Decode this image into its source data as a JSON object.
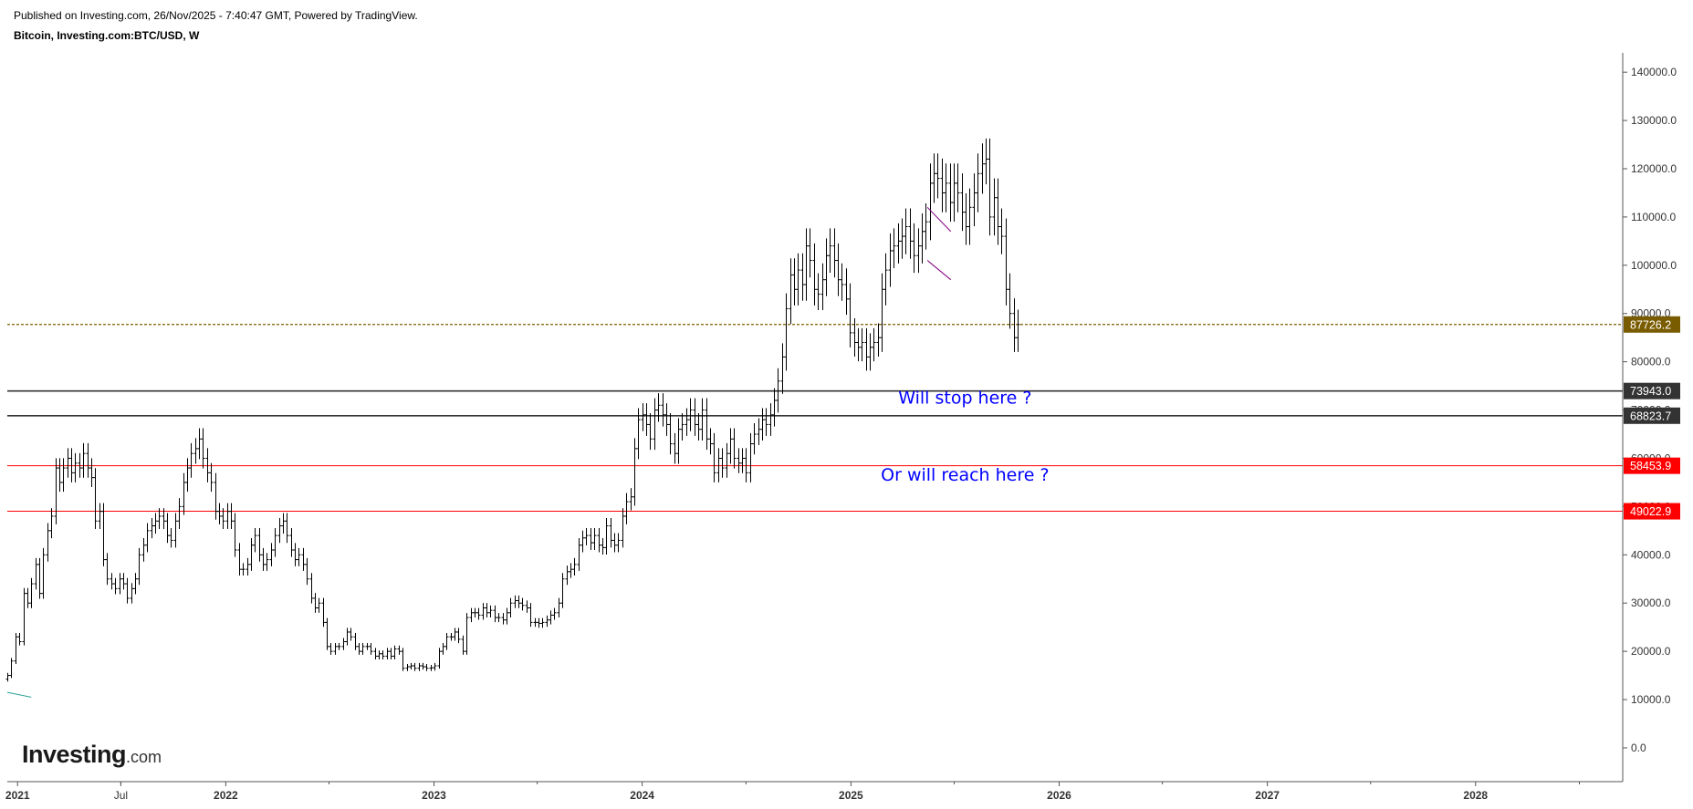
{
  "header": {
    "published": "Published on Investing.com, 26/Nov/2025 - 7:40:47 GMT, Powered by TradingView.",
    "symbol": "Bitcoin, Investing.com:BTC/USD, W"
  },
  "logo": {
    "brand": "Investing",
    "suffix": ".com"
  },
  "colors": {
    "candle": "#000000",
    "axis": "#555555",
    "current_price": "#7a5c00",
    "support_dark": "#333333",
    "support_red": "#ff0000",
    "annotation": "#0000ff",
    "flag": "#800080",
    "trend": "#2aa198"
  },
  "chart_data": {
    "type": "ohlc",
    "symbol": "BTC/USD",
    "interval": "W",
    "y_axis_ticks": [
      0,
      10000,
      20000,
      30000,
      40000,
      50000,
      60000,
      70000,
      80000,
      90000,
      100000,
      110000,
      120000,
      130000,
      140000
    ],
    "ylim": [
      -7000,
      144000
    ],
    "x_axis_labels": [
      {
        "label": "2021",
        "date": "2021-01-01"
      },
      {
        "label": "Jul",
        "date": "2021-07-01"
      },
      {
        "label": "2022",
        "date": "2022-01-01"
      },
      {
        "label": "2023",
        "date": "2023-01-01"
      },
      {
        "label": "2024",
        "date": "2024-01-01"
      },
      {
        "label": "2025",
        "date": "2025-01-01"
      },
      {
        "label": "2026",
        "date": "2026-01-01"
      },
      {
        "label": "2027",
        "date": "2027-01-01"
      },
      {
        "label": "2028",
        "date": "2028-01-01"
      }
    ],
    "xlim": [
      "2020-12-14",
      "2028-09-15"
    ],
    "weekly_closes": {
      "start": "2020-12-14",
      "values": [
        15000,
        18000,
        23000,
        22000,
        32000,
        30000,
        34000,
        38000,
        32000,
        40000,
        45000,
        48000,
        58000,
        55000,
        58000,
        60000,
        57000,
        59000,
        58000,
        61000,
        58000,
        56000,
        47000,
        49000,
        39000,
        35000,
        34000,
        33000,
        35000,
        34000,
        31000,
        33000,
        35000,
        40000,
        42000,
        45000,
        46000,
        47000,
        48000,
        47000,
        44000,
        43000,
        47000,
        50000,
        55000,
        58000,
        61000,
        62000,
        64000,
        60000,
        57000,
        55000,
        49000,
        48000,
        47000,
        49000,
        47000,
        41000,
        37000,
        37000,
        38000,
        42000,
        44000,
        40000,
        38000,
        39000,
        41000,
        44000,
        46000,
        47000,
        44000,
        41000,
        39000,
        40000,
        38000,
        35000,
        31000,
        29000,
        30000,
        26000,
        21000,
        20000,
        21000,
        21000,
        22000,
        24000,
        23000,
        21000,
        20000,
        21000,
        21000,
        20000,
        19000,
        19500,
        19000,
        20000,
        19000,
        20500,
        20000,
        16500,
        16800,
        17000,
        16500,
        17000,
        16800,
        16500,
        16600,
        17000,
        20000,
        21000,
        23000,
        23000,
        24000,
        22500,
        20000,
        27000,
        28000,
        28000,
        27500,
        29000,
        28000,
        28500,
        27000,
        27000,
        26500,
        28000,
        30000,
        30500,
        30000,
        29500,
        29000,
        26000,
        26000,
        25800,
        26000,
        26500,
        27500,
        28000,
        30000,
        35000,
        36500,
        37000,
        38000,
        42000,
        43500,
        44000,
        42500,
        44000,
        42000,
        41500,
        46000,
        43000,
        42000,
        43000,
        48000,
        51000,
        52000,
        62000,
        68000,
        69000,
        67000,
        64000,
        70000,
        71000,
        69000,
        67000,
        63000,
        61000,
        66000,
        67000,
        68000,
        70000,
        67000,
        66000,
        70000,
        64000,
        63000,
        57000,
        60000,
        58000,
        61000,
        64000,
        60000,
        59000,
        60000,
        57000,
        63000,
        65000,
        66000,
        68000,
        67000,
        69000,
        72000,
        76000,
        81000,
        91000,
        98000,
        95000,
        99000,
        96000,
        104000,
        101000,
        95000,
        94000,
        97000,
        102000,
        104000,
        101000,
        97000,
        96000,
        93000,
        86000,
        84000,
        83000,
        84000,
        81000,
        83000,
        84000,
        85000,
        95000,
        99000,
        103000,
        104000,
        105000,
        106000,
        108000,
        105000,
        102000,
        104000,
        107000,
        109000,
        117000,
        119000,
        118000,
        115000,
        117000,
        113000,
        117000,
        115000,
        111000,
        108000,
        112000,
        115000,
        119000,
        121000,
        122000,
        110000,
        114000,
        108000,
        106000,
        95000,
        90000,
        85000,
        87726.2
      ]
    },
    "current_price": 87726.2,
    "horizontal_levels": [
      {
        "value": 73943.0,
        "label": "73943.0",
        "color": "#333333"
      },
      {
        "value": 68823.7,
        "label": "68823.7",
        "color": "#333333"
      },
      {
        "value": 58453.9,
        "label": "58453.9",
        "color": "#ff0000"
      },
      {
        "value": 49022.9,
        "label": "49022.9",
        "color": "#ff0000"
      }
    ],
    "annotations": [
      {
        "text": "Will stop here ?",
        "date": "2025-07-20",
        "value": 71300
      },
      {
        "text": "Or will reach here ?",
        "date": "2025-07-20",
        "value": 55400
      }
    ],
    "flag_pattern": [
      {
        "from": {
          "date": "2025-05-15",
          "value": 112000
        },
        "to": {
          "date": "2025-06-25",
          "value": 107000
        }
      },
      {
        "from": {
          "date": "2025-05-15",
          "value": 101000
        },
        "to": {
          "date": "2025-06-25",
          "value": 97000
        }
      }
    ],
    "trend_segment": {
      "from": {
        "date": "2020-12-14",
        "value": 11500
      },
      "to": {
        "date": "2021-01-25",
        "value": 10500
      }
    }
  }
}
